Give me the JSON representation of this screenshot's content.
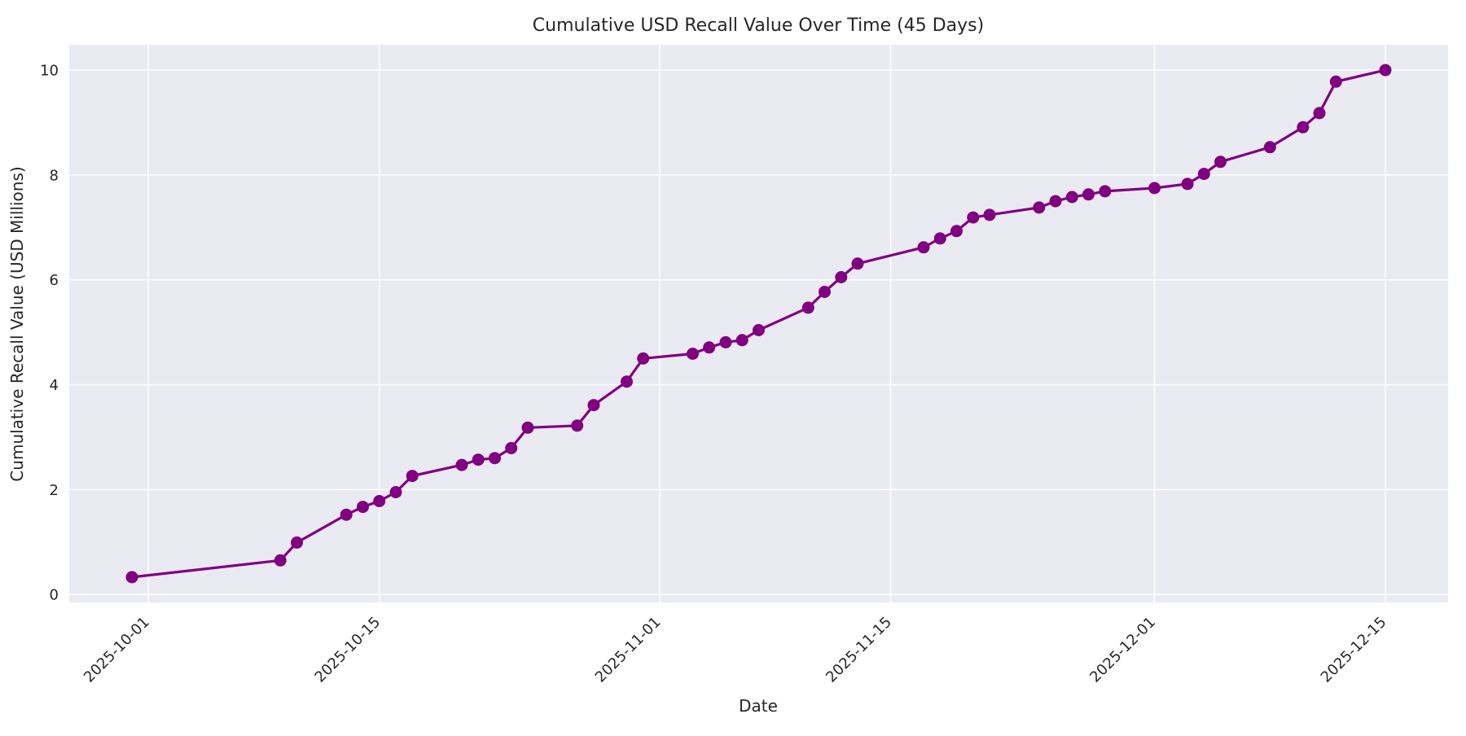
{
  "chart_data": {
    "type": "line",
    "title": "Cumulative USD Recall Value Over Time (45 Days)",
    "xlabel": "Date",
    "ylabel": "Cumulative Recall Value (USD Millions)",
    "x": [
      "2025-09-30",
      "2025-10-09",
      "2025-10-10",
      "2025-10-13",
      "2025-10-14",
      "2025-10-15",
      "2025-10-16",
      "2025-10-17",
      "2025-10-20",
      "2025-10-21",
      "2025-10-22",
      "2025-10-23",
      "2025-10-24",
      "2025-10-27",
      "2025-10-28",
      "2025-10-30",
      "2025-10-31",
      "2025-11-03",
      "2025-11-04",
      "2025-11-05",
      "2025-11-06",
      "2025-11-07",
      "2025-11-10",
      "2025-11-11",
      "2025-11-12",
      "2025-11-13",
      "2025-11-17",
      "2025-11-18",
      "2025-11-19",
      "2025-11-20",
      "2025-11-21",
      "2025-11-24",
      "2025-11-25",
      "2025-11-26",
      "2025-11-27",
      "2025-11-28",
      "2025-12-01",
      "2025-12-03",
      "2025-12-04",
      "2025-12-05",
      "2025-12-08",
      "2025-12-10",
      "2025-12-11",
      "2025-12-12",
      "2025-12-15"
    ],
    "y": [
      0.33,
      0.65,
      0.99,
      1.52,
      1.67,
      1.78,
      1.95,
      2.26,
      2.47,
      2.57,
      2.6,
      2.79,
      3.18,
      3.22,
      3.61,
      4.06,
      4.5,
      4.59,
      4.71,
      4.81,
      4.85,
      5.04,
      5.47,
      5.77,
      6.05,
      6.31,
      6.62,
      6.79,
      6.93,
      7.19,
      7.24,
      7.38,
      7.5,
      7.58,
      7.63,
      7.69,
      7.75,
      7.83,
      8.02,
      8.25,
      8.53,
      8.91,
      9.18,
      9.78,
      10.0
    ],
    "x_ticks": [
      "2025-10-01",
      "2025-10-15",
      "2025-11-01",
      "2025-11-15",
      "2025-12-01",
      "2025-12-15"
    ],
    "x_tick_rotation": 45,
    "y_ticks": [
      0,
      2,
      4,
      6,
      8,
      10
    ],
    "ylim": [
      -0.17,
      10.46
    ],
    "grid": true,
    "legend": false,
    "marker": "circle",
    "style": {
      "line": "#800080",
      "marker": "#800080",
      "plot_bg": "#eaeaf2",
      "grid": "#ffffff",
      "figure_bg": "#ffffff",
      "text": "#262626"
    }
  }
}
